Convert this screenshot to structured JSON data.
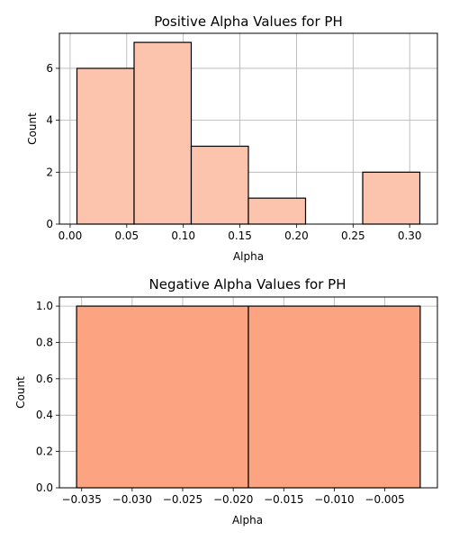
{
  "chart_data": [
    {
      "type": "bar",
      "subtype": "histogram",
      "title": "Positive Alpha Values for PH",
      "xlabel": "Alpha",
      "ylabel": "Count",
      "bins": [
        {
          "x0": 0.006,
          "x1": 0.0565,
          "count": 6
        },
        {
          "x0": 0.0565,
          "x1": 0.107,
          "count": 7
        },
        {
          "x0": 0.107,
          "x1": 0.1575,
          "count": 3
        },
        {
          "x0": 0.1575,
          "x1": 0.208,
          "count": 1
        },
        {
          "x0": 0.208,
          "x1": 0.2585,
          "count": 0
        },
        {
          "x0": 0.2585,
          "x1": 0.309,
          "count": 2
        }
      ],
      "xlim": [
        -0.0095,
        0.3245
      ],
      "ylim": [
        0,
        7.35
      ],
      "xticks": [
        0.0,
        0.05,
        0.1,
        0.15,
        0.2,
        0.25,
        0.3
      ],
      "xtick_labels": [
        "0.00",
        "0.05",
        "0.10",
        "0.15",
        "0.20",
        "0.25",
        "0.30"
      ],
      "yticks": [
        0,
        2,
        4,
        6
      ],
      "ytick_labels": [
        "0",
        "2",
        "4",
        "6"
      ],
      "grid": true,
      "bar_color": "#fcc3ad",
      "edge_color": "#000000"
    },
    {
      "type": "bar",
      "subtype": "histogram",
      "title": "Negative Alpha Values for PH",
      "xlabel": "Alpha",
      "ylabel": "Count",
      "bins": [
        {
          "x0": -0.0355,
          "x1": -0.0185,
          "count": 1
        },
        {
          "x0": -0.0185,
          "x1": -0.0015,
          "count": 1
        }
      ],
      "xlim": [
        -0.0372,
        0.0002
      ],
      "ylim": [
        0,
        1.05
      ],
      "xticks": [
        -0.035,
        -0.03,
        -0.025,
        -0.02,
        -0.015,
        -0.01,
        -0.005
      ],
      "xtick_labels": [
        "−0.035",
        "−0.030",
        "−0.025",
        "−0.020",
        "−0.015",
        "−0.010",
        "−0.005"
      ],
      "yticks": [
        0,
        0.2,
        0.4,
        0.6,
        0.8,
        1.0
      ],
      "ytick_labels": [
        "0.0",
        "0.2",
        "0.4",
        "0.6",
        "0.8",
        "1.0"
      ],
      "grid": true,
      "bar_color": "#fca482",
      "edge_color": "#000000"
    }
  ]
}
